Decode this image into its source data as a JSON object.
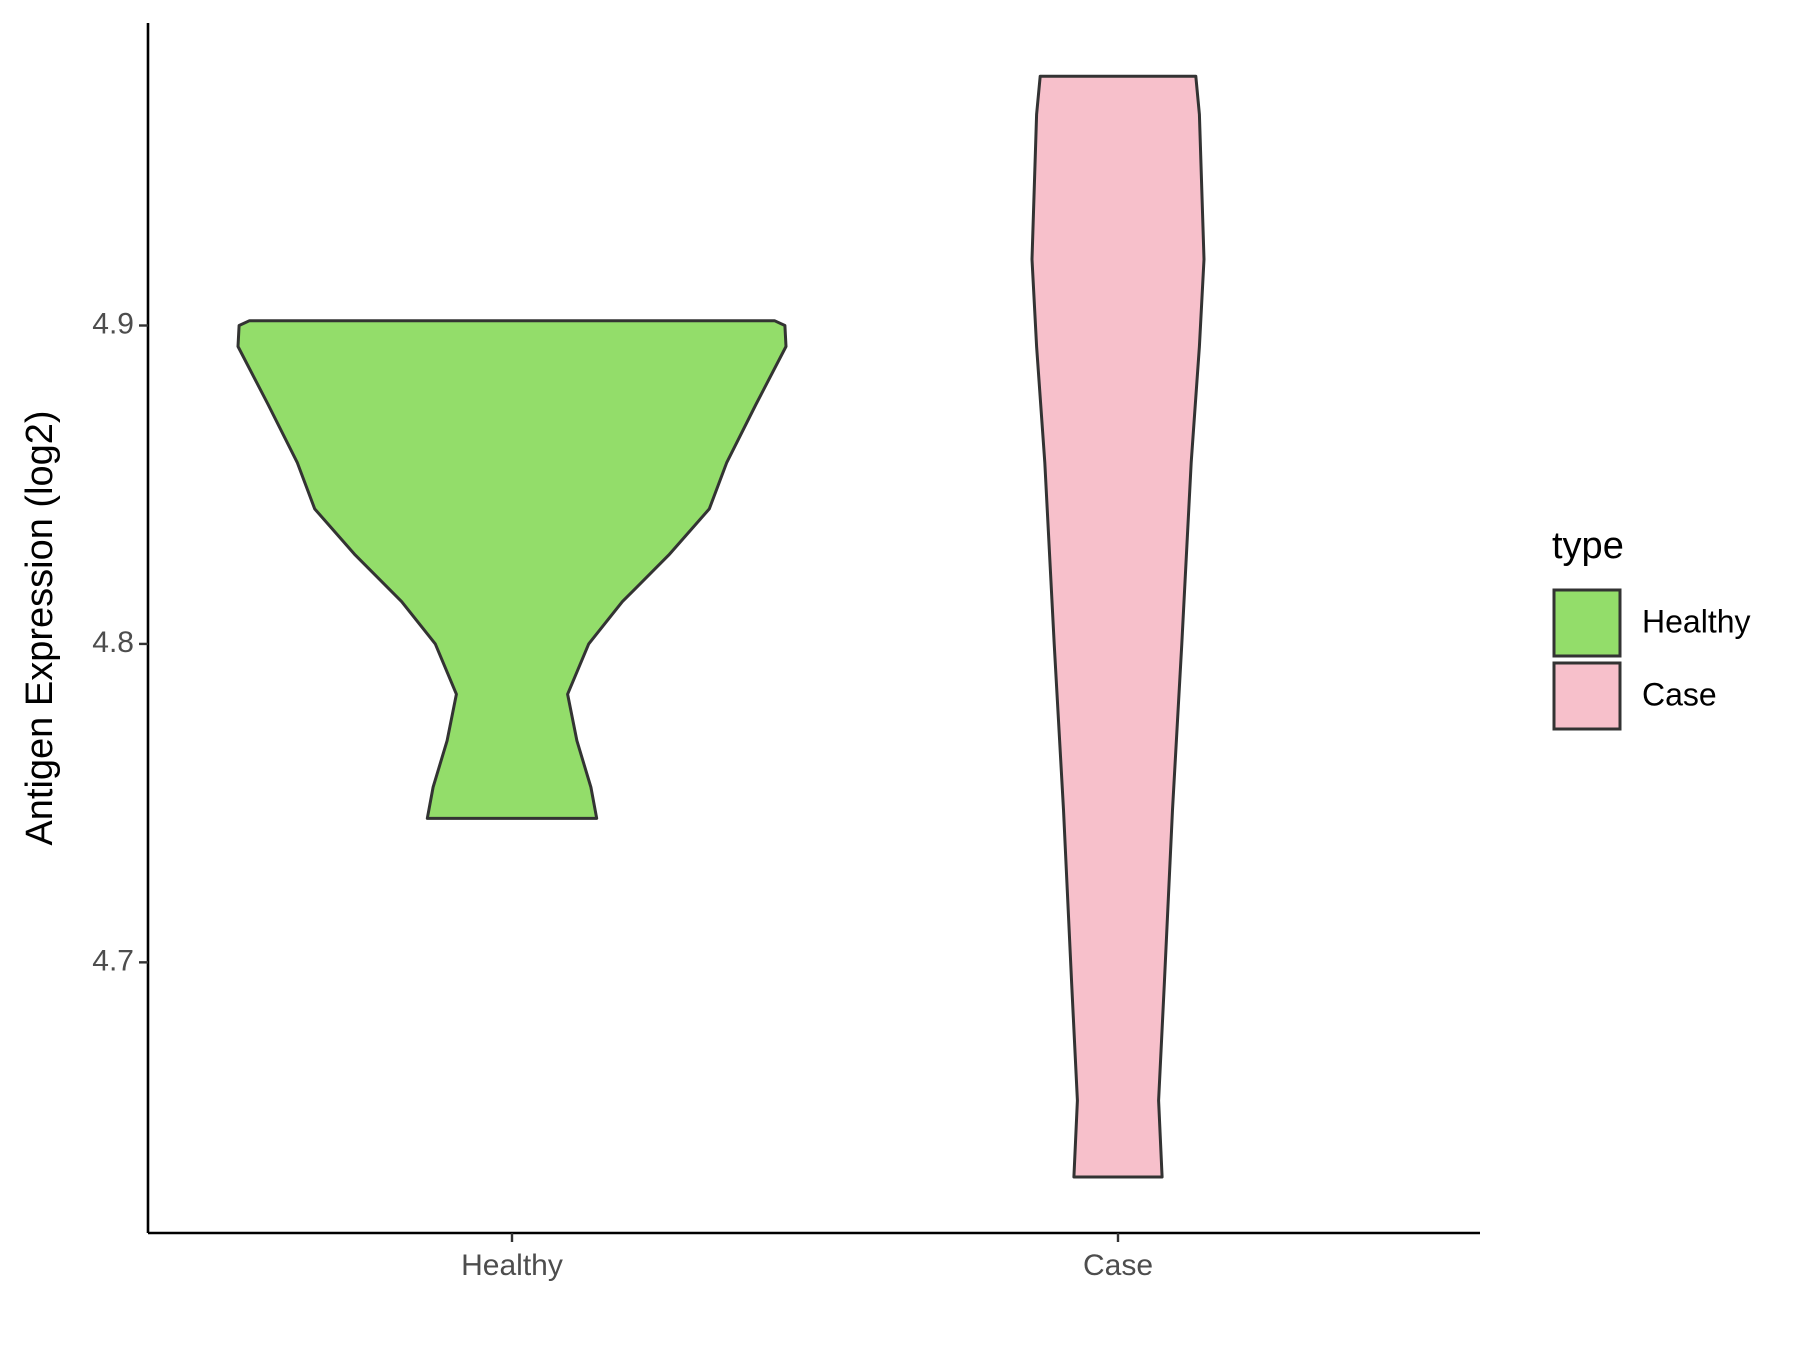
{
  "chart_data": {
    "type": "violin",
    "y_label": "Antigen Expression (log2)",
    "categories": [
      "Healthy",
      "Case"
    ],
    "legend_title": "type",
    "legend_position": "right",
    "ylim": [
      4.615,
      4.995
    ],
    "yticks": [
      4.7,
      4.8,
      4.9
    ],
    "series": [
      {
        "name": "Healthy",
        "color": "#93dd6a",
        "y": [
          4.9015,
          4.9,
          4.8934,
          4.8752,
          4.857,
          4.8424,
          4.8279,
          4.8133,
          4.8,
          4.7842,
          4.7696,
          4.755,
          4.7452
        ],
        "density": [
          0.958,
          0.996,
          1,
          0.89,
          0.784,
          0.72,
          0.572,
          0.403,
          0.28,
          0.203,
          0.237,
          0.288,
          0.309
        ]
      },
      {
        "name": "Case",
        "color": "#f7c0cb",
        "y": [
          4.9783,
          4.9663,
          4.9208,
          4.8934,
          4.857,
          4.8,
          4.7479,
          4.6931,
          4.6566,
          4.6326
        ],
        "density": [
          0.284,
          0.297,
          0.314,
          0.297,
          0.267,
          0.233,
          0.199,
          0.169,
          0.148,
          0.161
        ]
      }
    ]
  }
}
